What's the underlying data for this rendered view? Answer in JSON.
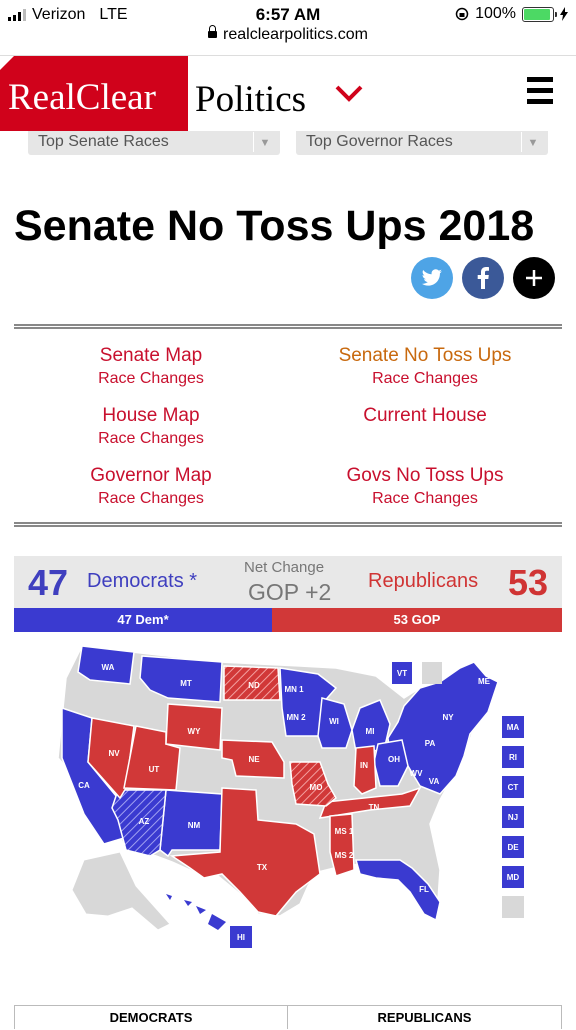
{
  "status_bar": {
    "carrier": "Verizon",
    "network": "LTE",
    "time": "6:57 AM",
    "battery": "100%"
  },
  "browser": {
    "url": "realclearpolitics.com"
  },
  "header": {
    "logo_red": "RealClear",
    "logo_black": "Politics"
  },
  "dropdowns": {
    "senate": "Top Senate Races",
    "governor": "Top Governor Races"
  },
  "page_title": "Senate No Toss Ups 2018",
  "share": {
    "twitter": "twitter-icon",
    "facebook": "facebook-icon",
    "more": "plus-icon"
  },
  "links": [
    {
      "main": "Senate Map",
      "sub": "Race Changes"
    },
    {
      "main": "Senate No Toss Ups",
      "sub": "Race Changes"
    },
    {
      "main": "House Map",
      "sub": "Race Changes"
    },
    {
      "main": "Current House",
      "sub": ""
    },
    {
      "main": "Governor Map",
      "sub": "Race Changes"
    },
    {
      "main": "Govs No Toss Ups",
      "sub": "Race Changes"
    }
  ],
  "count": {
    "dem_num": "47",
    "dem_label": "Democrats *",
    "net_label": "Net Change",
    "net_value": "GOP +2",
    "rep_label": "Republicans",
    "rep_num": "53",
    "dem_bar": "47 Dem*",
    "rep_bar": "53 GOP",
    "dem_seats": 47,
    "rep_seats": 53
  },
  "colors": {
    "dem": "#3a3ad0",
    "rep": "#d13838",
    "none": "#d8d8d8",
    "brand": "#d0021b"
  },
  "map": {
    "labels": [
      "WA",
      "MT",
      "ND",
      "MN 1",
      "MN 2",
      "WI",
      "MI",
      "ME",
      "VT",
      "NY",
      "MA",
      "RI",
      "CT",
      "NJ",
      "DE",
      "MD",
      "PA",
      "OH",
      "WV",
      "VA",
      "IN",
      "NV",
      "WY",
      "UT",
      "NE",
      "CA",
      "AZ",
      "NM",
      "MO",
      "TN",
      "MS 1",
      "MS 2",
      "TX",
      "FL",
      "HI"
    ]
  },
  "table": {
    "dem": "DEMOCRATS",
    "rep": "REPUBLICANS"
  }
}
